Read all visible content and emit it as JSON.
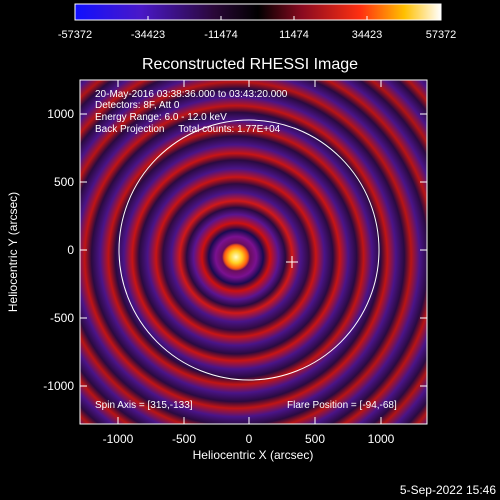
{
  "colorbar": {
    "ticks": [
      "-57372",
      "-34423",
      "-11474",
      "11474",
      "34423",
      "57372"
    ]
  },
  "plot": {
    "title": "Reconstructed RHESSI Image",
    "x_axis_label": "Heliocentric X (arcsec)",
    "y_axis_label": "Heliocentric Y (arcsec)",
    "x_ticks": [
      "-1000",
      "-500",
      "0",
      "500",
      "1000"
    ],
    "y_ticks": [
      "1000",
      "500",
      "0",
      "-500",
      "-1000"
    ],
    "info_lines": [
      "20-May-2016 03:38:36.000 to 03:43:20.000",
      "Detectors: 8F, Att 0",
      "Energy Range: 6.0 - 12.0 keV",
      "Back Projection     Total counts: 1.77E+04"
    ],
    "spin_axis": "Spin Axis = [315,-133]",
    "flare_position": "Flare Position = [-94,-68]"
  },
  "footer": {
    "date": "5-Sep-2022 15:46"
  },
  "colors": {
    "background": "#000000",
    "foreground": "#ffffff"
  }
}
